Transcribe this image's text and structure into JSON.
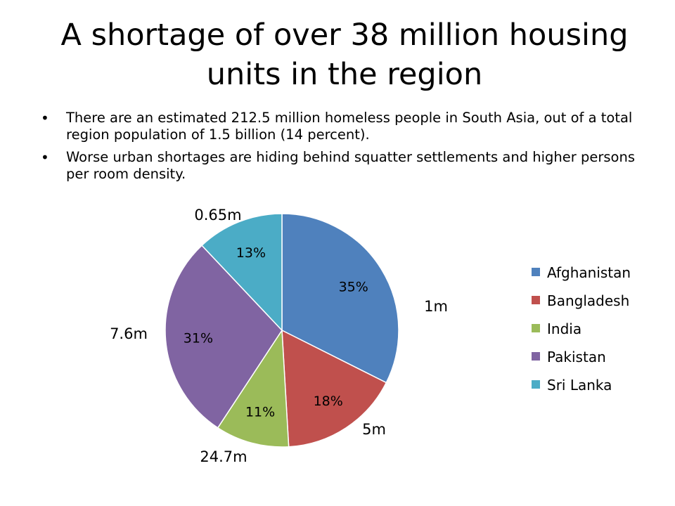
{
  "slide": {
    "title": "A shortage of over 38 million housing units in the region",
    "bullets": [
      "There are an estimated 212.5 million homeless people in South Asia, out of a total region population of 1.5 billion (14 percent).",
      "Worse urban shortages are hiding behind squatter settlements and higher persons per room density."
    ]
  },
  "chart_data": {
    "type": "pie",
    "title": "",
    "legend_position": "right",
    "slices": [
      {
        "name": "Afghanistan",
        "percent": 35,
        "percent_label": "35%",
        "value_label": "1m",
        "color": "#4F81BD"
      },
      {
        "name": "Bangladesh",
        "percent": 18,
        "percent_label": "18%",
        "value_label": "5m",
        "color": "#C0504D"
      },
      {
        "name": "India",
        "percent": 11,
        "percent_label": "11%",
        "value_label": "24.7m",
        "color": "#9BBB59"
      },
      {
        "name": "Pakistan",
        "percent": 31,
        "percent_label": "31%",
        "value_label": "7.6m",
        "color": "#8064A2"
      },
      {
        "name": "Sri Lanka",
        "percent": 13,
        "percent_label": "13%",
        "value_label": "0.65m",
        "color": "#4BACC6"
      }
    ]
  }
}
